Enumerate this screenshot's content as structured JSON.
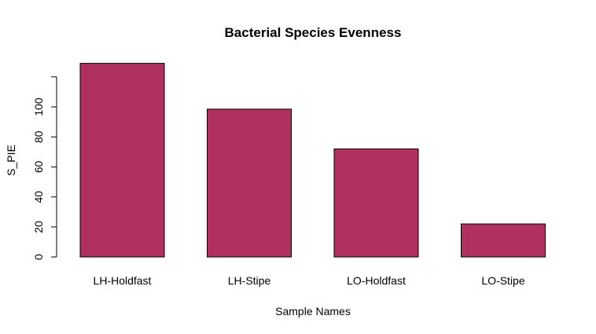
{
  "chart_data": {
    "type": "bar",
    "title": "Bacterial Species Evenness",
    "xlabel": "Sample Names",
    "ylabel": "S_PIE",
    "categories": [
      "LH-Holdfast",
      "LH-Stipe",
      "LO-Holdfast",
      "LO-Stipe"
    ],
    "values": [
      129,
      98.5,
      72,
      22
    ],
    "ylim": [
      0,
      120
    ],
    "yticks": [
      0,
      20,
      40,
      60,
      80,
      100
    ],
    "bar_color": "#B03060",
    "grid": false,
    "legend": "none"
  }
}
